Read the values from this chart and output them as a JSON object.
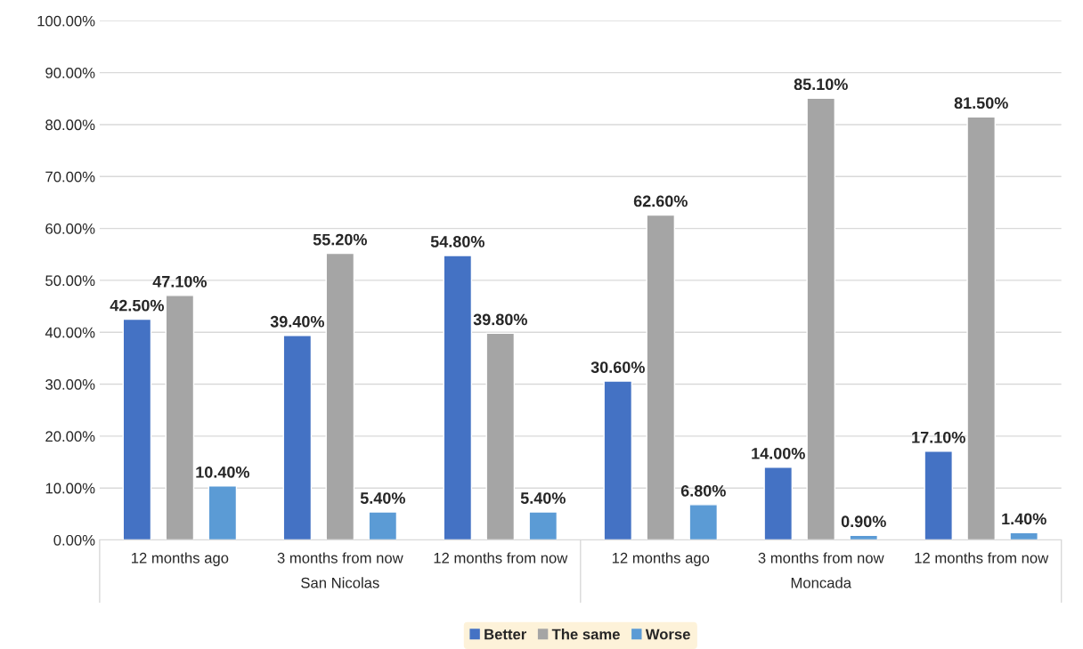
{
  "chart_data": {
    "type": "bar",
    "categories": [
      "12 months ago",
      "3 months from now",
      "12 months from now",
      "12 months ago",
      "3 months from now",
      "12 months from now"
    ],
    "series": [
      {
        "name": "Better",
        "color": "#4472c4",
        "values": [
          42.5,
          39.4,
          54.8,
          30.6,
          14.0,
          17.1
        ],
        "value_labels": [
          "42.50%",
          "39.40%",
          "54.80%",
          "30.60%",
          "14.00%",
          "17.10%"
        ]
      },
      {
        "name": "The same",
        "color": "#a5a5a5",
        "values": [
          47.1,
          55.2,
          39.8,
          62.6,
          85.1,
          81.5
        ],
        "value_labels": [
          "47.10%",
          "55.20%",
          "39.80%",
          "62.60%",
          "85.10%",
          "81.50%"
        ]
      },
      {
        "name": "Worse",
        "color": "#5b9bd5",
        "values": [
          10.4,
          5.4,
          5.4,
          6.8,
          0.9,
          1.4
        ],
        "value_labels": [
          "10.40%",
          "5.40%",
          "5.40%",
          "6.80%",
          "0.90%",
          "1.40%"
        ]
      }
    ],
    "annotations": [
      "San Nicolas",
      "Moncada"
    ],
    "ylim": [
      0,
      100
    ],
    "yticks": [
      {
        "value": 0,
        "label": "0.00%"
      },
      {
        "value": 10,
        "label": "10.00%"
      },
      {
        "value": 20,
        "label": "20.00%"
      },
      {
        "value": 30,
        "label": "30.00%"
      },
      {
        "value": 40,
        "label": "40.00%"
      },
      {
        "value": 50,
        "label": "50.00%"
      },
      {
        "value": 60,
        "label": "60.00%"
      },
      {
        "value": 70,
        "label": "70.00%"
      },
      {
        "value": 80,
        "label": "80.00%"
      },
      {
        "value": 90,
        "label": "90.00%"
      },
      {
        "value": 100,
        "label": "100.00%"
      }
    ],
    "grid": "y",
    "legend": "bottom"
  }
}
